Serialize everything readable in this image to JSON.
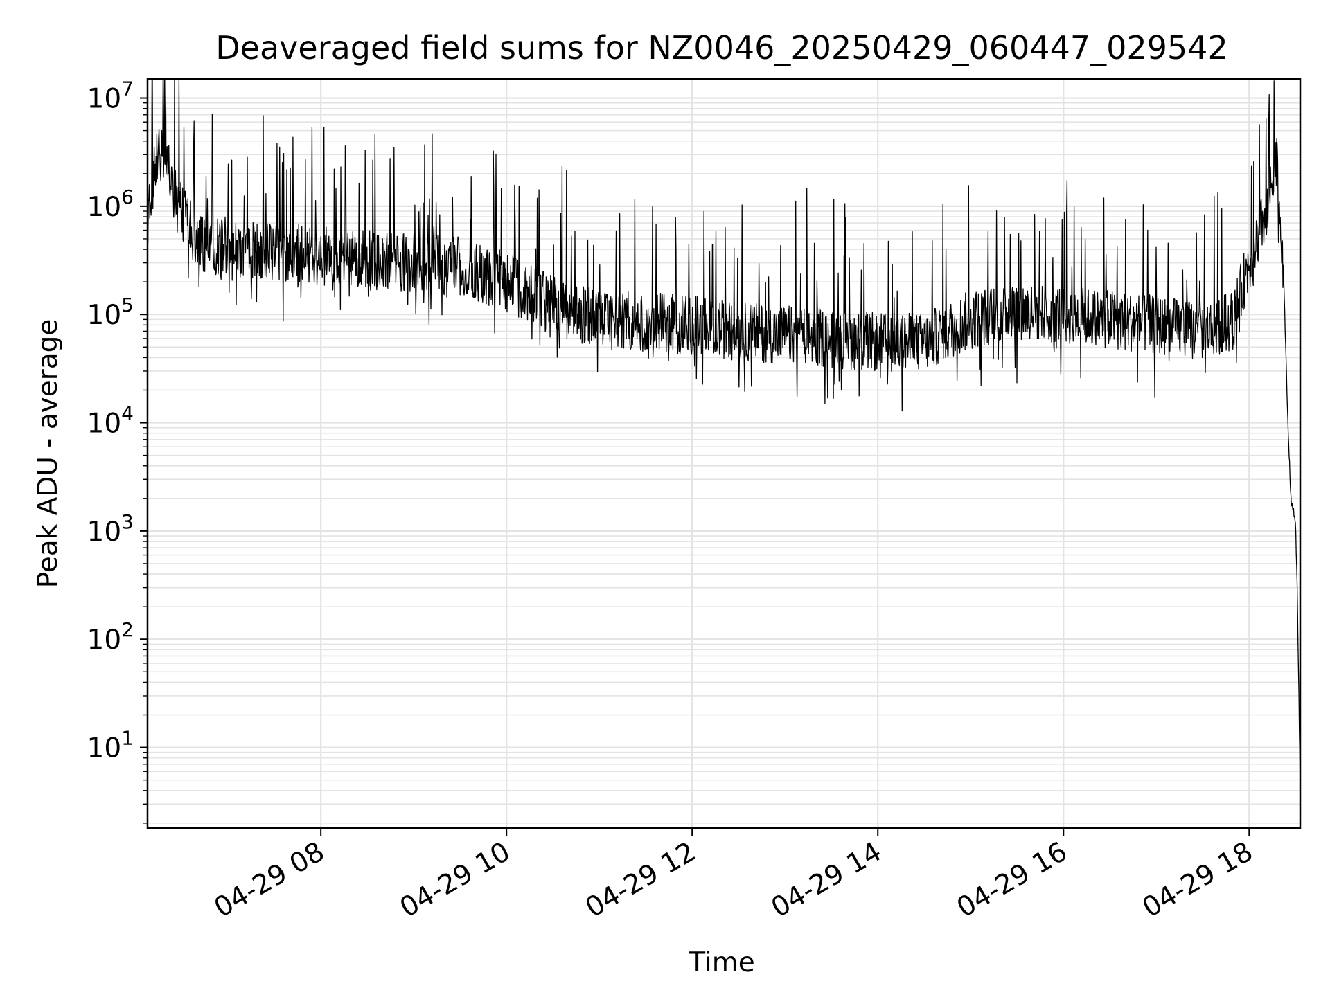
{
  "chart_data": {
    "type": "line",
    "title": "Deaveraged field sums for NZ0046_20250429_060447_029542",
    "xlabel": "Time",
    "ylabel": "Peak ADU - average",
    "yscale": "log",
    "grid": true,
    "legend": "none",
    "line_color": "#000000",
    "xlim": [
      "2025-04-29T06:08",
      "2025-04-29T18:33"
    ],
    "ylim": [
      1.8,
      15000000
    ],
    "x_ticks": [
      {
        "label": "04-29 08",
        "t": "2025-04-29T08:00"
      },
      {
        "label": "04-29 10",
        "t": "2025-04-29T10:00"
      },
      {
        "label": "04-29 12",
        "t": "2025-04-29T12:00"
      },
      {
        "label": "04-29 14",
        "t": "2025-04-29T14:00"
      },
      {
        "label": "04-29 16",
        "t": "2025-04-29T16:00"
      },
      {
        "label": "04-29 18",
        "t": "2025-04-29T18:00"
      }
    ],
    "y_ticks": [
      {
        "base": "10",
        "exp": "1",
        "value": 10
      },
      {
        "base": "10",
        "exp": "2",
        "value": 100
      },
      {
        "base": "10",
        "exp": "3",
        "value": 1000
      },
      {
        "base": "10",
        "exp": "4",
        "value": 10000
      },
      {
        "base": "10",
        "exp": "5",
        "value": 100000
      },
      {
        "base": "10",
        "exp": "6",
        "value": 1000000
      },
      {
        "base": "10",
        "exp": "7",
        "value": 10000000
      }
    ],
    "series": [
      {
        "points": [
          {
            "t": "2025-04-29T06:08",
            "y": 800000
          },
          {
            "t": "2025-04-29T06:13",
            "y": 2500000
          },
          {
            "t": "2025-04-29T06:18",
            "y": 3000000
          },
          {
            "t": "2025-04-29T06:23",
            "y": 1800000
          },
          {
            "t": "2025-04-29T06:30",
            "y": 900000
          },
          {
            "t": "2025-04-29T06:40",
            "y": 450000
          },
          {
            "t": "2025-04-29T07:00",
            "y": 380000
          },
          {
            "t": "2025-04-29T07:30",
            "y": 380000
          },
          {
            "t": "2025-04-29T08:00",
            "y": 350000
          },
          {
            "t": "2025-04-29T08:30",
            "y": 320000
          },
          {
            "t": "2025-04-29T09:00",
            "y": 300000
          },
          {
            "t": "2025-04-29T09:30",
            "y": 280000
          },
          {
            "t": "2025-04-29T10:00",
            "y": 200000
          },
          {
            "t": "2025-04-29T10:30",
            "y": 120000
          },
          {
            "t": "2025-04-29T11:00",
            "y": 90000
          },
          {
            "t": "2025-04-29T11:30",
            "y": 85000
          },
          {
            "t": "2025-04-29T12:00",
            "y": 80000
          },
          {
            "t": "2025-04-29T12:30",
            "y": 70000
          },
          {
            "t": "2025-04-29T13:00",
            "y": 65000
          },
          {
            "t": "2025-04-29T13:30",
            "y": 60000
          },
          {
            "t": "2025-04-29T14:00",
            "y": 55000
          },
          {
            "t": "2025-04-29T14:30",
            "y": 55000
          },
          {
            "t": "2025-04-29T15:00",
            "y": 90000
          },
          {
            "t": "2025-04-29T15:30",
            "y": 110000
          },
          {
            "t": "2025-04-29T16:00",
            "y": 100000
          },
          {
            "t": "2025-04-29T16:30",
            "y": 90000
          },
          {
            "t": "2025-04-29T17:00",
            "y": 80000
          },
          {
            "t": "2025-04-29T17:30",
            "y": 70000
          },
          {
            "t": "2025-04-29T17:50",
            "y": 90000
          },
          {
            "t": "2025-04-29T18:00",
            "y": 300000
          },
          {
            "t": "2025-04-29T18:10",
            "y": 800000
          },
          {
            "t": "2025-04-29T18:18",
            "y": 2500000
          },
          {
            "t": "2025-04-29T18:22",
            "y": 300000
          },
          {
            "t": "2025-04-29T18:25",
            "y": 10000
          },
          {
            "t": "2025-04-29T18:27",
            "y": 2000
          },
          {
            "t": "2025-04-29T18:30",
            "y": 1200
          },
          {
            "t": "2025-04-29T18:31",
            "y": 300
          },
          {
            "t": "2025-04-29T18:32",
            "y": 40
          },
          {
            "t": "2025-04-29T18:33",
            "y": 4
          }
        ]
      }
    ]
  }
}
